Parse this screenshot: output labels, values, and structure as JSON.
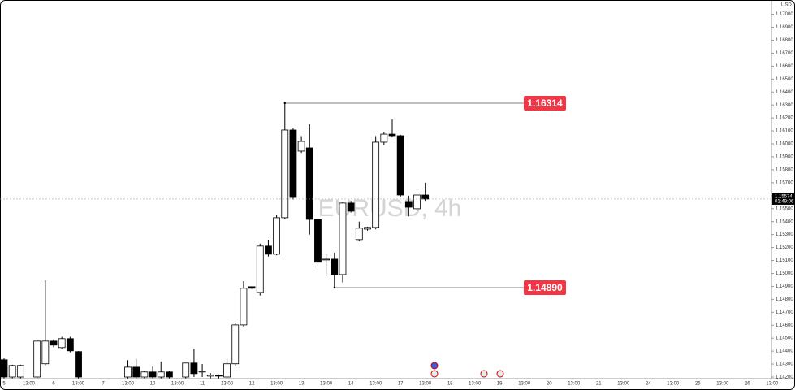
{
  "chart_data": {
    "type": "candlestick",
    "title": "EURUSD, 4h",
    "currency": "USD",
    "ylim": [
      1.142,
      1.17
    ],
    "yticks": [
      {
        "value": 1.142,
        "label": "1.14200"
      },
      {
        "value": 1.143,
        "label": "1.14300"
      },
      {
        "value": 1.144,
        "label": "1.14400"
      },
      {
        "value": 1.145,
        "label": "1.14500"
      },
      {
        "value": 1.146,
        "label": "1.14600"
      },
      {
        "value": 1.147,
        "label": "1.14700"
      },
      {
        "value": 1.148,
        "label": "1.14800"
      },
      {
        "value": 1.149,
        "label": "1.14900"
      },
      {
        "value": 1.15,
        "label": "1.15000"
      },
      {
        "value": 1.151,
        "label": "1.15100"
      },
      {
        "value": 1.152,
        "label": "1.15200"
      },
      {
        "value": 1.153,
        "label": "1.15300"
      },
      {
        "value": 1.154,
        "label": "1.15400"
      },
      {
        "value": 1.155,
        "label": "1.15500"
      },
      {
        "value": 1.156,
        "label": "1.15600"
      },
      {
        "value": 1.157,
        "label": "1.15700"
      },
      {
        "value": 1.158,
        "label": "1.15800"
      },
      {
        "value": 1.159,
        "label": "1.15900"
      },
      {
        "value": 1.16,
        "label": "1.16000"
      },
      {
        "value": 1.161,
        "label": "1.16100"
      },
      {
        "value": 1.162,
        "label": "1.16200"
      },
      {
        "value": 1.163,
        "label": "1.16300"
      },
      {
        "value": 1.164,
        "label": "1.16400"
      },
      {
        "value": 1.165,
        "label": "1.16500"
      },
      {
        "value": 1.166,
        "label": "1.16600"
      },
      {
        "value": 1.167,
        "label": "1.16700"
      },
      {
        "value": 1.168,
        "label": "1.16800"
      },
      {
        "value": 1.169,
        "label": "1.16900"
      },
      {
        "value": 1.17,
        "label": "1.17000"
      }
    ],
    "xtick_labels": [
      "5",
      "13:00",
      "6",
      "13:00",
      "7",
      "13:00",
      "10",
      "13:00",
      "11",
      "13:00",
      "12",
      "13:00",
      "13",
      "13:00",
      "14",
      "13:00",
      "17",
      "13:00",
      "18",
      "13:00",
      "19",
      "13:00",
      "20",
      "13:00",
      "21",
      "13:00",
      "24",
      "13:00",
      "25",
      "13:00",
      "26",
      "13:00"
    ],
    "up_color": "#ffffff",
    "down_color": "#000000",
    "border_color": "#000000",
    "candles": [
      {
        "open": 1.14333,
        "high": 1.14345,
        "low": 1.1419,
        "close": 1.142
      },
      {
        "open": 1.142,
        "high": 1.14295,
        "low": 1.1419,
        "close": 1.14289
      },
      {
        "open": 1.142,
        "high": 1.14295,
        "low": 1.1419,
        "close": 1.14289
      },
      null,
      {
        "open": 1.142,
        "high": 1.1449,
        "low": 1.1419,
        "close": 1.14477
      },
      {
        "open": 1.14302,
        "high": 1.14947,
        "low": 1.1429,
        "close": 1.14477
      },
      {
        "open": 1.14477,
        "high": 1.1449,
        "low": 1.1443,
        "close": 1.14446
      },
      {
        "open": 1.14427,
        "high": 1.1451,
        "low": 1.1442,
        "close": 1.14496
      },
      {
        "open": 1.14496,
        "high": 1.1451,
        "low": 1.1439,
        "close": 1.14402
      },
      {
        "open": 1.14396,
        "high": 1.144,
        "low": 1.1419,
        "close": 1.142
      },
      null,
      null,
      null,
      null,
      null,
      {
        "open": 1.142,
        "high": 1.1433,
        "low": 1.1419,
        "close": 1.14276
      },
      {
        "open": 1.14276,
        "high": 1.1434,
        "low": 1.1419,
        "close": 1.142
      },
      {
        "open": 1.142,
        "high": 1.1425,
        "low": 1.1419,
        "close": 1.14239
      },
      {
        "open": 1.14239,
        "high": 1.1428,
        "low": 1.1419,
        "close": 1.142
      },
      {
        "open": 1.142,
        "high": 1.1432,
        "low": 1.1419,
        "close": 1.14239
      },
      {
        "open": 1.14239,
        "high": 1.1425,
        "low": 1.1419,
        "close": 1.142
      },
      null,
      {
        "open": 1.142,
        "high": 1.1431,
        "low": 1.1419,
        "close": 1.14308
      },
      {
        "open": 1.14308,
        "high": 1.1442,
        "low": 1.142,
        "close": 1.14226
      },
      {
        "open": 1.14239,
        "high": 1.143,
        "low": 1.142,
        "close": 1.14245
      },
      {
        "open": 1.14207,
        "high": 1.1423,
        "low": 1.1419,
        "close": 1.14215
      },
      {
        "open": 1.14215,
        "high": 1.1422,
        "low": 1.1419,
        "close": 1.14207
      },
      {
        "open": 1.142,
        "high": 1.1434,
        "low": 1.1419,
        "close": 1.14302
      },
      {
        "open": 1.14302,
        "high": 1.1462,
        "low": 1.1428,
        "close": 1.14602
      },
      {
        "open": 1.14602,
        "high": 1.1494,
        "low": 1.1459,
        "close": 1.14885
      },
      {
        "open": 1.14897,
        "high": 1.149,
        "low": 1.1488,
        "close": 1.14885
      },
      {
        "open": 1.14853,
        "high": 1.1523,
        "low": 1.1483,
        "close": 1.15211
      },
      {
        "open": 1.15211,
        "high": 1.1526,
        "low": 1.1513,
        "close": 1.15148
      },
      {
        "open": 1.15148,
        "high": 1.1545,
        "low": 1.1514,
        "close": 1.1543
      },
      {
        "open": 1.1543,
        "high": 1.16314,
        "low": 1.1542,
        "close": 1.16107
      },
      {
        "open": 1.16107,
        "high": 1.1612,
        "low": 1.1557,
        "close": 1.15586
      },
      {
        "open": 1.15944,
        "high": 1.1606,
        "low": 1.1593,
        "close": 1.16019
      },
      {
        "open": 1.15969,
        "high": 1.1615,
        "low": 1.153,
        "close": 1.15417
      },
      {
        "open": 1.15417,
        "high": 1.1542,
        "low": 1.1505,
        "close": 1.15086
      },
      {
        "open": 1.15104,
        "high": 1.1515,
        "low": 1.1498,
        "close": 1.1511
      },
      {
        "open": 1.1511,
        "high": 1.1516,
        "low": 1.1489,
        "close": 1.14991
      },
      {
        "open": 1.14991,
        "high": 1.1555,
        "low": 1.1493,
        "close": 1.15543
      },
      {
        "open": 1.15543,
        "high": 1.1556,
        "low": 1.1547,
        "close": 1.1548
      },
      {
        "open": 1.15261,
        "high": 1.154,
        "low": 1.1525,
        "close": 1.15349
      },
      {
        "open": 1.15342,
        "high": 1.1536,
        "low": 1.1533,
        "close": 1.15355
      },
      {
        "open": 1.15355,
        "high": 1.1606,
        "low": 1.1534,
        "close": 1.16013
      },
      {
        "open": 1.16013,
        "high": 1.1609,
        "low": 1.1599,
        "close": 1.16075
      },
      {
        "open": 1.16075,
        "high": 1.16188,
        "low": 1.1605,
        "close": 1.16063
      },
      {
        "open": 1.16063,
        "high": 1.1607,
        "low": 1.1559,
        "close": 1.15605
      },
      {
        "open": 1.15555,
        "high": 1.156,
        "low": 1.1544,
        "close": 1.15511
      },
      {
        "open": 1.15499,
        "high": 1.1562,
        "low": 1.1548,
        "close": 1.15605
      },
      {
        "open": 1.15605,
        "high": 1.157,
        "low": 1.1556,
        "close": 1.15574
      }
    ],
    "levels": [
      {
        "value": 1.16314,
        "label": "1.16314",
        "anchor": 34
      },
      {
        "value": 1.1489,
        "label": "1.14890",
        "anchor": 40
      }
    ],
    "level_color": "#f23645",
    "last_price": {
      "value": 1.15574,
      "label": "1.15574"
    },
    "countdown": "01:49:06"
  }
}
